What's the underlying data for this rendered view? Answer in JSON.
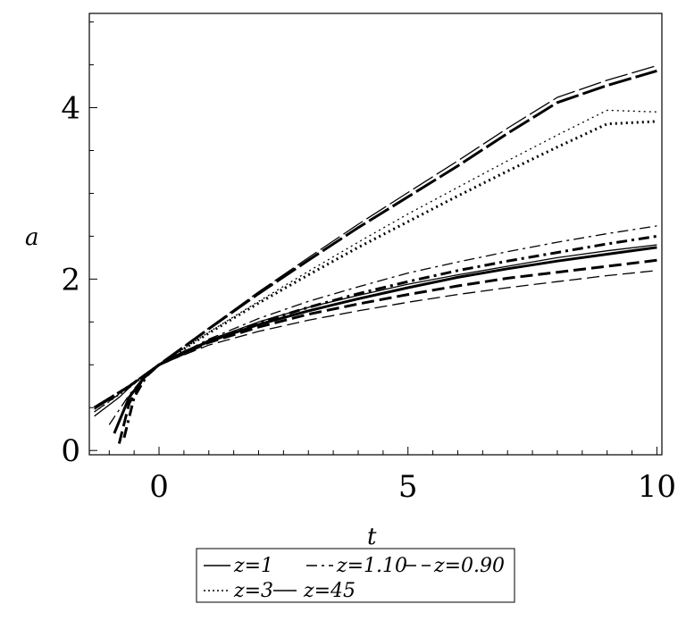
{
  "chart_data": {
    "type": "line",
    "xlabel": "t",
    "ylabel": "a",
    "xlim": [
      -1.4,
      10.1
    ],
    "ylim": [
      -0.05,
      5.1
    ],
    "xticks": [
      0,
      5,
      10
    ],
    "yticks": [
      0,
      2,
      4
    ],
    "xtick_labels": [
      "0",
      "5",
      "10"
    ],
    "ytick_labels": [
      "0",
      "2",
      "4"
    ],
    "grid": false,
    "legend_position": "bottom-center",
    "legend": [
      {
        "label": "z=1",
        "style": "solid"
      },
      {
        "label": "z=1.10",
        "style": "dashdot"
      },
      {
        "label": "z=0.90",
        "style": "dashed"
      },
      {
        "label": "z=3",
        "style": "dotted"
      },
      {
        "label": "z=45",
        "style": "longdash"
      }
    ],
    "series": [
      {
        "name": "z=1",
        "style": "solid",
        "weight": "thick",
        "points": [
          [
            -0.9,
            0.2
          ],
          [
            -0.6,
            0.62
          ],
          [
            -0.3,
            0.85
          ],
          [
            0,
            1.0
          ],
          [
            0.5,
            1.15
          ],
          [
            1,
            1.27
          ],
          [
            2,
            1.47
          ],
          [
            3,
            1.63
          ],
          [
            4,
            1.77
          ],
          [
            5,
            1.9
          ],
          [
            6,
            2.02
          ],
          [
            7,
            2.12
          ],
          [
            8,
            2.21
          ],
          [
            9,
            2.29
          ],
          [
            10,
            2.37
          ]
        ]
      },
      {
        "name": "z=1",
        "style": "solid",
        "weight": "thin",
        "points": [
          [
            -1.3,
            0.4
          ],
          [
            -0.8,
            0.62
          ],
          [
            -0.4,
            0.84
          ],
          [
            0,
            1.0
          ],
          [
            1,
            1.29
          ],
          [
            2,
            1.5
          ],
          [
            3,
            1.67
          ],
          [
            4,
            1.81
          ],
          [
            5,
            1.94
          ],
          [
            6,
            2.05
          ],
          [
            7,
            2.15
          ],
          [
            8,
            2.25
          ],
          [
            9,
            2.33
          ],
          [
            10,
            2.4
          ]
        ]
      },
      {
        "name": "z=1.10",
        "style": "dashdot",
        "weight": "thick",
        "points": [
          [
            -0.7,
            0.15
          ],
          [
            -0.5,
            0.62
          ],
          [
            -0.25,
            0.87
          ],
          [
            0,
            1.0
          ],
          [
            1,
            1.27
          ],
          [
            2,
            1.49
          ],
          [
            3,
            1.67
          ],
          [
            4,
            1.83
          ],
          [
            5,
            1.97
          ],
          [
            6,
            2.1
          ],
          [
            7,
            2.21
          ],
          [
            8,
            2.31
          ],
          [
            9,
            2.41
          ],
          [
            10,
            2.5
          ]
        ]
      },
      {
        "name": "z=1.10",
        "style": "dashdot",
        "weight": "thin",
        "points": [
          [
            -1.0,
            0.3
          ],
          [
            -0.6,
            0.65
          ],
          [
            -0.3,
            0.86
          ],
          [
            0,
            1.0
          ],
          [
            1,
            1.3
          ],
          [
            2,
            1.54
          ],
          [
            3,
            1.74
          ],
          [
            4,
            1.91
          ],
          [
            5,
            2.07
          ],
          [
            6,
            2.2
          ],
          [
            7,
            2.32
          ],
          [
            8,
            2.43
          ],
          [
            9,
            2.53
          ],
          [
            10,
            2.62
          ]
        ]
      },
      {
        "name": "z=0.90",
        "style": "dashed",
        "weight": "thick",
        "points": [
          [
            -0.8,
            0.08
          ],
          [
            -0.6,
            0.55
          ],
          [
            -0.3,
            0.86
          ],
          [
            0,
            1.0
          ],
          [
            1,
            1.26
          ],
          [
            2,
            1.44
          ],
          [
            3,
            1.59
          ],
          [
            4,
            1.71
          ],
          [
            5,
            1.82
          ],
          [
            6,
            1.92
          ],
          [
            7,
            2.01
          ],
          [
            8,
            2.08
          ],
          [
            9,
            2.15
          ],
          [
            10,
            2.22
          ]
        ]
      },
      {
        "name": "z=0.90",
        "style": "dashed",
        "weight": "thin",
        "points": [
          [
            -1.3,
            0.45
          ],
          [
            -0.7,
            0.7
          ],
          [
            -0.3,
            0.88
          ],
          [
            0,
            1.0
          ],
          [
            1,
            1.23
          ],
          [
            2,
            1.39
          ],
          [
            3,
            1.52
          ],
          [
            4,
            1.63
          ],
          [
            5,
            1.73
          ],
          [
            6,
            1.82
          ],
          [
            7,
            1.9
          ],
          [
            8,
            1.97
          ],
          [
            9,
            2.04
          ],
          [
            10,
            2.1
          ]
        ]
      },
      {
        "name": "z=3",
        "style": "dotted",
        "weight": "thick",
        "points": [
          [
            -1.3,
            0.5
          ],
          [
            -0.6,
            0.75
          ],
          [
            0,
            1.0
          ],
          [
            1,
            1.37
          ],
          [
            2,
            1.72
          ],
          [
            3,
            2.05
          ],
          [
            4,
            2.37
          ],
          [
            5,
            2.67
          ],
          [
            6,
            2.97
          ],
          [
            7,
            3.26
          ],
          [
            8,
            3.54
          ],
          [
            9,
            3.81
          ],
          [
            10,
            3.84
          ]
        ]
      },
      {
        "name": "z=3",
        "style": "dotted",
        "weight": "thin",
        "points": [
          [
            -1.3,
            0.45
          ],
          [
            -0.6,
            0.73
          ],
          [
            0,
            1.0
          ],
          [
            1,
            1.38
          ],
          [
            2,
            1.74
          ],
          [
            3,
            2.09
          ],
          [
            4,
            2.43
          ],
          [
            5,
            2.76
          ],
          [
            6,
            3.07
          ],
          [
            7,
            3.38
          ],
          [
            8,
            3.68
          ],
          [
            9,
            3.97
          ],
          [
            10,
            3.95
          ]
        ]
      },
      {
        "name": "z=45",
        "style": "longdash",
        "weight": "thick",
        "points": [
          [
            -1.3,
            0.5
          ],
          [
            -0.6,
            0.75
          ],
          [
            0,
            1.0
          ],
          [
            1,
            1.42
          ],
          [
            2,
            1.83
          ],
          [
            3,
            2.22
          ],
          [
            4,
            2.6
          ],
          [
            5,
            2.96
          ],
          [
            6,
            3.32
          ],
          [
            7,
            3.7
          ],
          [
            8,
            4.06
          ],
          [
            9,
            4.26
          ],
          [
            10,
            4.43
          ]
        ]
      },
      {
        "name": "z=45",
        "style": "longdash",
        "weight": "thin",
        "points": [
          [
            -1.3,
            0.48
          ],
          [
            -0.6,
            0.74
          ],
          [
            0,
            1.0
          ],
          [
            1,
            1.43
          ],
          [
            2,
            1.85
          ],
          [
            3,
            2.25
          ],
          [
            4,
            2.64
          ],
          [
            5,
            3.01
          ],
          [
            6,
            3.38
          ],
          [
            7,
            3.76
          ],
          [
            8,
            4.12
          ],
          [
            9,
            4.32
          ],
          [
            10,
            4.49
          ]
        ]
      }
    ]
  }
}
